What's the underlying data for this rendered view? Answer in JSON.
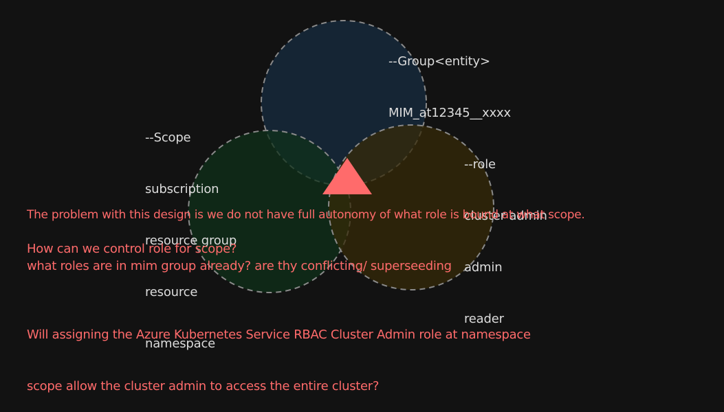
{
  "colors": {
    "background": "#121212",
    "group_circle_fill": "#172c40",
    "scope_circle_fill": "#0f3019",
    "role_circle_fill": "#352a08",
    "circle_stroke": "#8a8a8a",
    "triangle_fill": "#ff6b6b",
    "label_text": "#dcdcdc",
    "note_text": "#ff6b6b"
  },
  "group_label": {
    "lines": [
      "--Group<entity>",
      "MIM_at12345__xxxx"
    ]
  },
  "scope_label": {
    "lines": [
      "--Scope",
      "subscription",
      "resource group",
      "resource",
      "namespace"
    ]
  },
  "role_label": {
    "lines": [
      "--role",
      "cluster admin",
      "admin",
      "reader"
    ]
  },
  "notes": {
    "problem": "The problem with this design is we do not have full autonomy of what role is bound at what scope.",
    "question_1": "How can we control role for scope?",
    "question_2": "what roles are in mim group already? are thy conflicting/ superseeding",
    "question_3_line_1": "Will assigning the Azure Kubernetes Service RBAC Cluster Admin role at namespace",
    "question_3_line_2": "scope allow the cluster admin to access the entire cluster?"
  }
}
